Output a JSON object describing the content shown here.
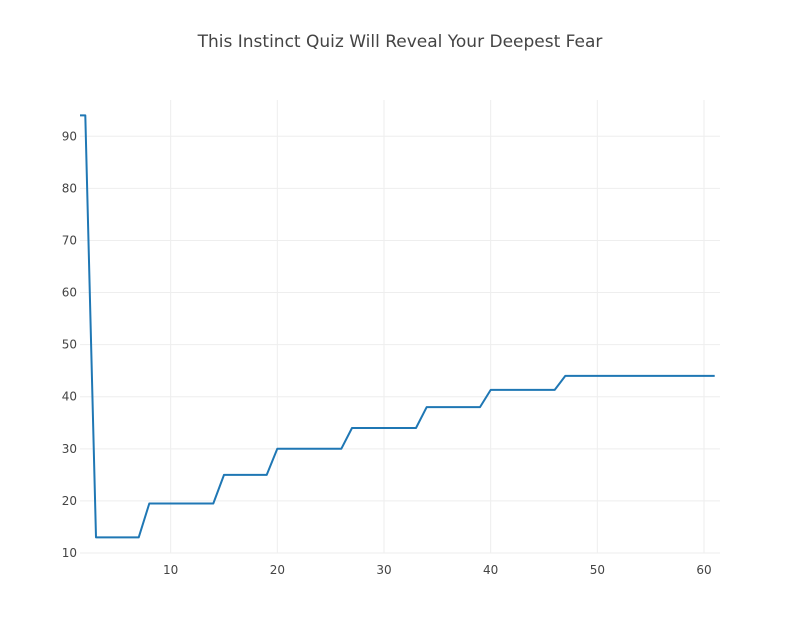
{
  "chart_data": {
    "type": "line",
    "title": "This Instinct Quiz Will Reveal Your Deepest Fear",
    "xlabel": "",
    "ylabel": "",
    "xlim": [
      1.5,
      61.5
    ],
    "ylim": [
      10,
      96
    ],
    "x_ticks": [
      10,
      20,
      30,
      40,
      50,
      60
    ],
    "y_ticks": [
      10,
      20,
      30,
      40,
      50,
      60,
      70,
      80,
      90
    ],
    "grid": true,
    "legend": "none",
    "series": [
      {
        "color": "#1f77b4",
        "x": [
          1.5,
          2,
          3,
          4,
          5,
          6,
          7,
          8,
          9,
          10,
          11,
          12,
          13,
          14,
          15,
          16,
          17,
          18,
          19,
          20,
          21,
          22,
          23,
          24,
          25,
          26,
          27,
          28,
          29,
          30,
          31,
          32,
          33,
          34,
          35,
          36,
          37,
          38,
          39,
          40,
          41,
          42,
          43,
          44,
          45,
          46,
          47,
          48,
          49,
          50,
          51,
          52,
          53,
          54,
          55,
          56,
          57,
          58,
          59,
          60,
          61
        ],
        "y": [
          94,
          94,
          13,
          13,
          13,
          13,
          13,
          19.5,
          19.5,
          19.5,
          19.5,
          19.5,
          19.5,
          19.5,
          25,
          25,
          25,
          25,
          25,
          30,
          30,
          30,
          30,
          30,
          30,
          30,
          34,
          34,
          34,
          34,
          34,
          34,
          34,
          38,
          38,
          38,
          38,
          38,
          38,
          41.3,
          41.3,
          41.3,
          41.3,
          41.3,
          41.3,
          41.3,
          44,
          44,
          44,
          44,
          44,
          44,
          44,
          44,
          44,
          44,
          44,
          44,
          44,
          44,
          44
        ]
      }
    ]
  }
}
